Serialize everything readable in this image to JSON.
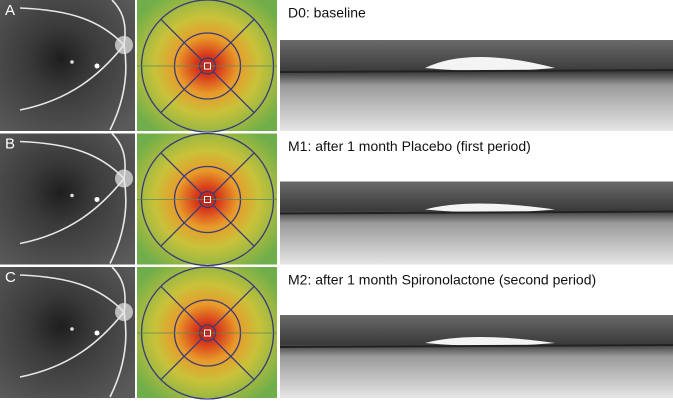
{
  "panels": [
    {
      "label": "A",
      "caption": "D0: baseline"
    },
    {
      "label": "B",
      "caption": "M1: after 1 month Placebo (first period)"
    },
    {
      "label": "C",
      "caption": "M2: after 1 month Spironolactone (second period)"
    }
  ]
}
